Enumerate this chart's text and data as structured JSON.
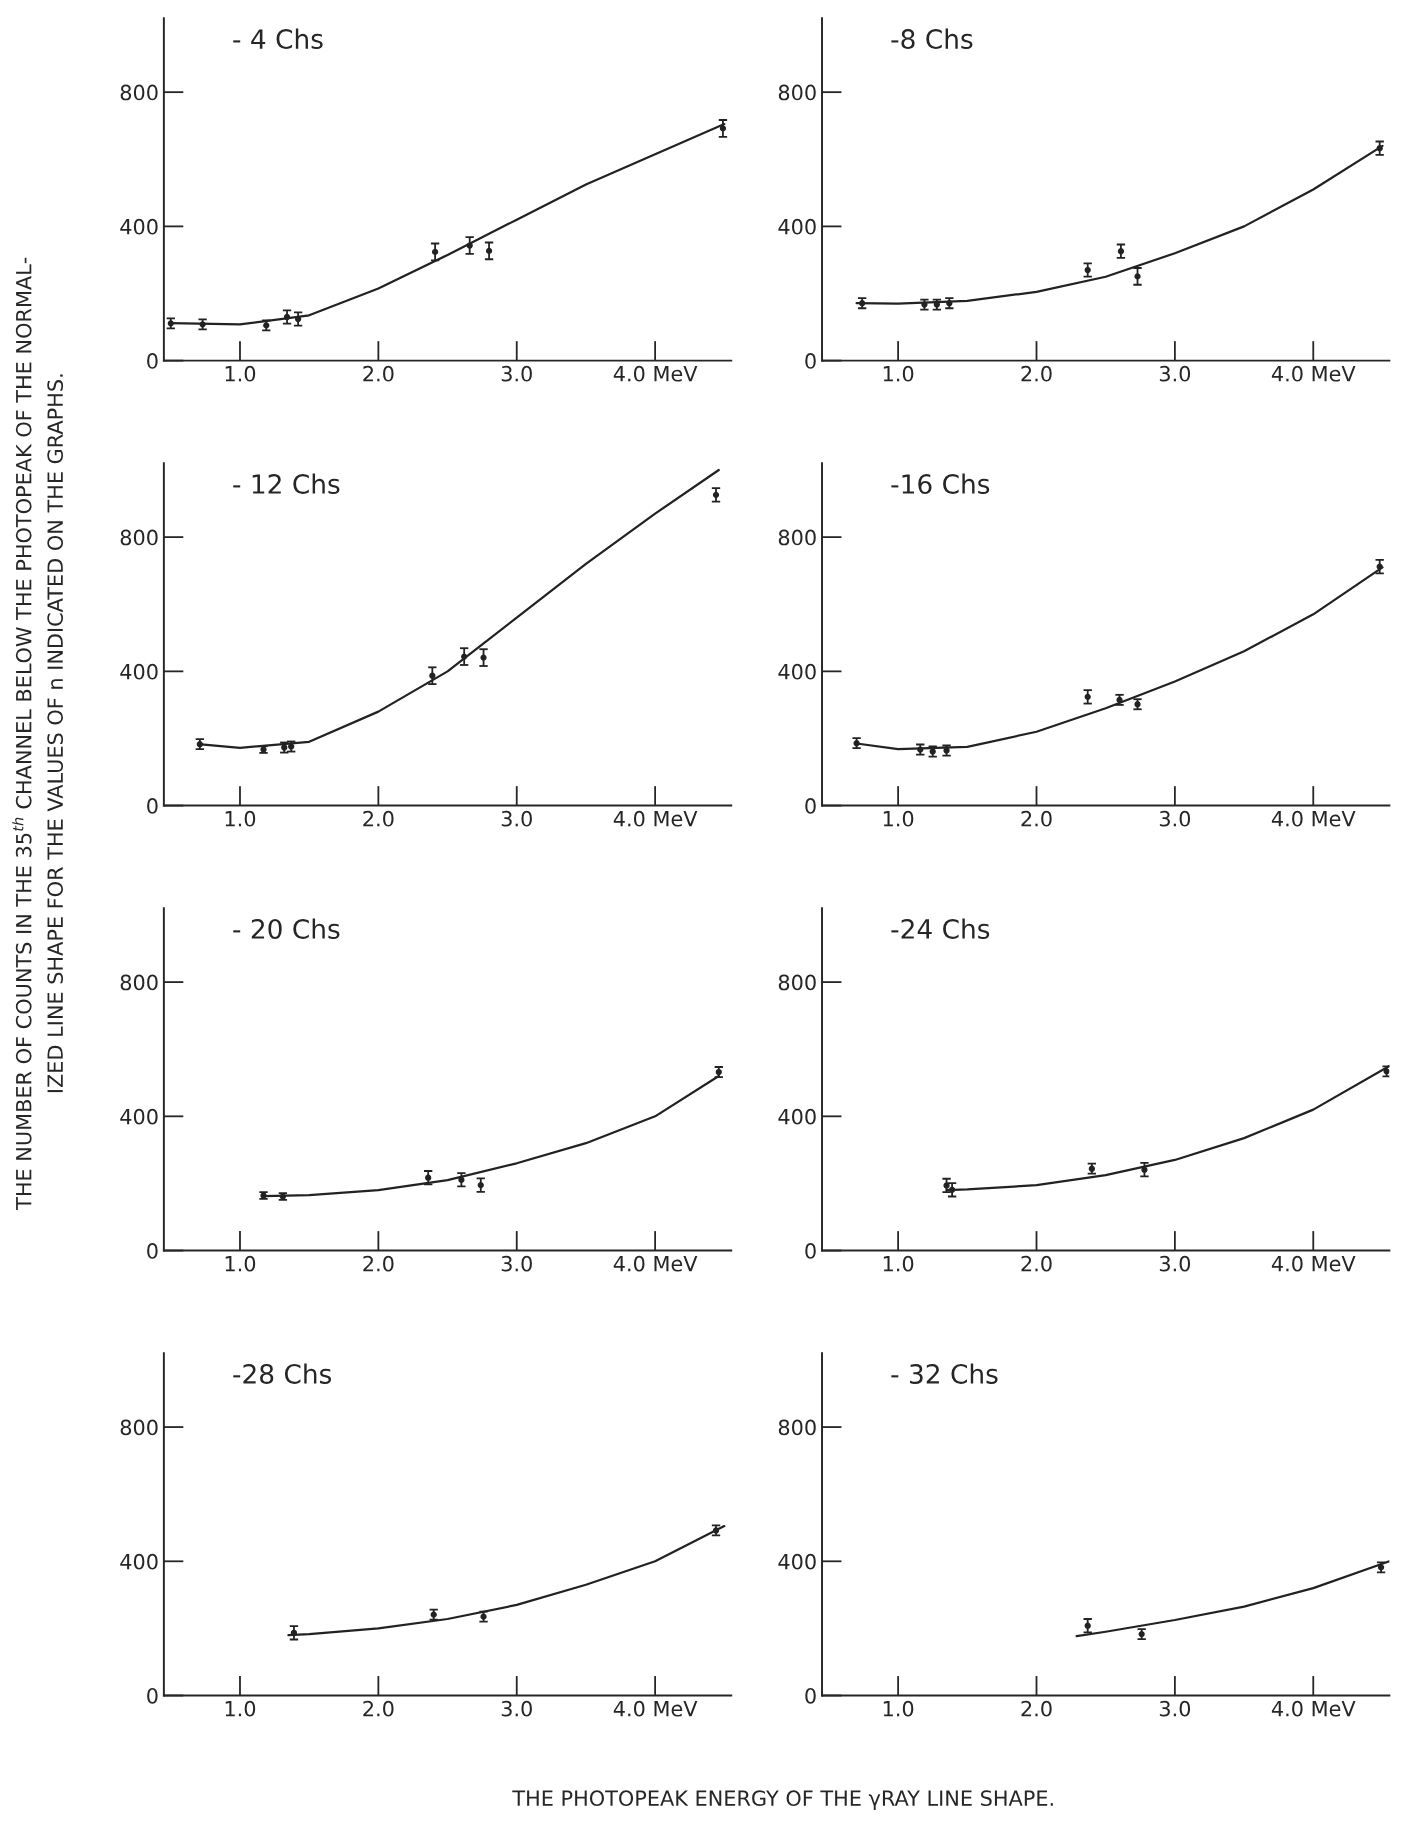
{
  "chart_data": [
    {
      "type": "scatter",
      "title": "- 4 Chs",
      "xlim": [
        0.45,
        4.55
      ],
      "ylim": [
        0,
        1020
      ],
      "xticks": [
        {
          "value": 1,
          "label": "1.0"
        },
        {
          "value": 2,
          "label": "2.0"
        },
        {
          "value": 3,
          "label": "3.0"
        },
        {
          "value": 4,
          "label": "4.0 MeV"
        }
      ],
      "yticks": [
        0,
        400,
        800
      ],
      "annotations": [
        "THE NUMBER OF COUNTS IN THE 35$^{th}$ CHANNEL BELOW THE PHOTOPEAK OF THE NORMAL-",
        "IZED LINE SHAPE FOR THE VALUES OF n INDICATED ON THE GRAPHS.",
        "THE PHOTOPEAK ENERGY OF THE γRAY LINE SHAPE."
      ],
      "series": [
        {
          "type": "scatter",
          "marker": "circle",
          "color": "#222222",
          "x": [
            0.5,
            0.73,
            1.19,
            1.34,
            1.42,
            2.41,
            2.66,
            2.8,
            4.49
          ],
          "values": [
            111,
            108,
            105,
            130,
            124,
            324,
            343,
            327,
            692
          ],
          "errors": [
            15,
            15,
            15,
            20,
            20,
            25,
            25,
            25,
            25
          ]
        },
        {
          "type": "line",
          "color": "#222222",
          "x": [
            0.5,
            1.0,
            1.5,
            2.0,
            2.5,
            3.0,
            3.5,
            4.0,
            4.5
          ],
          "values": [
            112,
            108,
            135,
            215,
            315,
            420,
            525,
            615,
            705
          ]
        }
      ]
    },
    {
      "type": "scatter",
      "title": "-8 Chs",
      "xlim": [
        0.45,
        4.55
      ],
      "ylim": [
        0,
        1020
      ],
      "xticks": [
        {
          "value": 1,
          "label": "1.0"
        },
        {
          "value": 2,
          "label": "2.0"
        },
        {
          "value": 3,
          "label": "3.0"
        },
        {
          "value": 4,
          "label": "4.0 MeV"
        }
      ],
      "yticks": [
        0,
        400,
        800
      ],
      "series": [
        {
          "type": "scatter",
          "marker": "circle",
          "color": "#222222",
          "x": [
            0.74,
            1.19,
            1.28,
            1.37,
            2.37,
            2.61,
            2.73,
            4.48
          ],
          "values": [
            171,
            167,
            167,
            171,
            270,
            326,
            251,
            633
          ],
          "errors": [
            15,
            15,
            15,
            15,
            20,
            20,
            25,
            20
          ]
        },
        {
          "type": "line",
          "color": "#222222",
          "x": [
            0.7,
            1.0,
            1.5,
            2.0,
            2.5,
            3.0,
            3.5,
            4.0,
            4.5
          ],
          "values": [
            171,
            170,
            178,
            205,
            250,
            320,
            400,
            510,
            640
          ]
        }
      ]
    },
    {
      "type": "scatter",
      "title": "- 12 Chs",
      "xlim": [
        0.45,
        4.55
      ],
      "ylim": [
        0,
        1020
      ],
      "xticks": [
        {
          "value": 1,
          "label": "1.0"
        },
        {
          "value": 2,
          "label": "2.0"
        },
        {
          "value": 3,
          "label": "3.0"
        },
        {
          "value": 4,
          "label": "4.0 MeV"
        }
      ],
      "yticks": [
        0,
        400,
        800
      ],
      "series": [
        {
          "type": "scatter",
          "marker": "circle",
          "color": "#222222",
          "x": [
            0.71,
            1.17,
            1.32,
            1.37,
            2.39,
            2.62,
            2.76,
            4.44
          ],
          "values": [
            183,
            167,
            173,
            176,
            387,
            444,
            441,
            926
          ],
          "errors": [
            15,
            10,
            15,
            15,
            25,
            25,
            25,
            20
          ]
        },
        {
          "type": "line",
          "color": "#222222",
          "x": [
            0.7,
            1.0,
            1.5,
            2.0,
            2.5,
            3.0,
            3.5,
            4.0,
            4.46
          ],
          "values": [
            183,
            172,
            190,
            280,
            400,
            560,
            720,
            870,
            1000
          ]
        }
      ]
    },
    {
      "type": "scatter",
      "title": "-16 Chs",
      "xlim": [
        0.45,
        4.55
      ],
      "ylim": [
        0,
        1020
      ],
      "xticks": [
        {
          "value": 1,
          "label": "1.0"
        },
        {
          "value": 2,
          "label": "2.0"
        },
        {
          "value": 3,
          "label": "3.0"
        },
        {
          "value": 4,
          "label": "4.0 MeV"
        }
      ],
      "yticks": [
        0,
        400,
        800
      ],
      "series": [
        {
          "type": "scatter",
          "marker": "circle",
          "color": "#222222",
          "x": [
            0.7,
            1.16,
            1.25,
            1.35,
            2.37,
            2.6,
            2.73,
            4.48
          ],
          "values": [
            186,
            167,
            161,
            164,
            324,
            315,
            302,
            712
          ],
          "errors": [
            15,
            15,
            15,
            15,
            20,
            15,
            15,
            20
          ]
        },
        {
          "type": "line",
          "color": "#222222",
          "x": [
            0.7,
            1.0,
            1.5,
            2.0,
            2.5,
            3.0,
            3.5,
            4.0,
            4.5
          ],
          "values": [
            185,
            168,
            175,
            220,
            290,
            370,
            460,
            570,
            710
          ]
        }
      ]
    },
    {
      "type": "scatter",
      "title": "- 20 Chs",
      "xlim": [
        0.45,
        4.55
      ],
      "ylim": [
        0,
        1020
      ],
      "xticks": [
        {
          "value": 1,
          "label": "1.0"
        },
        {
          "value": 2,
          "label": "2.0"
        },
        {
          "value": 3,
          "label": "3.0"
        },
        {
          "value": 4,
          "label": "4.0 MeV"
        }
      ],
      "yticks": [
        0,
        400,
        800
      ],
      "series": [
        {
          "type": "scatter",
          "marker": "circle",
          "color": "#222222",
          "x": [
            1.17,
            1.31,
            2.36,
            2.6,
            2.74,
            4.46
          ],
          "values": [
            164,
            161,
            217,
            211,
            195,
            532
          ],
          "errors": [
            10,
            10,
            20,
            20,
            20,
            15
          ]
        },
        {
          "type": "line",
          "color": "#222222",
          "x": [
            1.17,
            1.5,
            2.0,
            2.5,
            3.0,
            3.5,
            4.0,
            4.46
          ],
          "values": [
            162,
            165,
            180,
            210,
            260,
            320,
            400,
            520
          ]
        }
      ]
    },
    {
      "type": "scatter",
      "title": "-24 Chs",
      "xlim": [
        0.45,
        4.55
      ],
      "ylim": [
        0,
        1020
      ],
      "xticks": [
        {
          "value": 1,
          "label": "1.0"
        },
        {
          "value": 2,
          "label": "2.0"
        },
        {
          "value": 3,
          "label": "3.0"
        },
        {
          "value": 4,
          "label": "4.0 MeV"
        }
      ],
      "yticks": [
        0,
        400,
        800
      ],
      "series": [
        {
          "type": "scatter",
          "marker": "circle",
          "color": "#222222",
          "x": [
            1.35,
            1.39,
            2.4,
            2.78,
            4.53
          ],
          "values": [
            194,
            181,
            244,
            241,
            534
          ],
          "errors": [
            20,
            20,
            15,
            20,
            15
          ]
        },
        {
          "type": "line",
          "color": "#222222",
          "x": [
            1.35,
            1.5,
            2.0,
            2.5,
            3.0,
            3.5,
            4.0,
            4.55
          ],
          "values": [
            180,
            182,
            195,
            225,
            270,
            335,
            420,
            550
          ]
        }
      ]
    },
    {
      "type": "scatter",
      "title": "-28 Chs",
      "xlim": [
        0.45,
        4.55
      ],
      "ylim": [
        0,
        1020
      ],
      "xticks": [
        {
          "value": 1,
          "label": "1.0"
        },
        {
          "value": 2,
          "label": "2.0"
        },
        {
          "value": 3,
          "label": "3.0"
        },
        {
          "value": 4,
          "label": "4.0 MeV"
        }
      ],
      "yticks": [
        0,
        400,
        800
      ],
      "series": [
        {
          "type": "scatter",
          "marker": "circle",
          "color": "#222222",
          "x": [
            1.39,
            2.4,
            2.76,
            4.44
          ],
          "values": [
            187,
            241,
            235,
            492
          ],
          "errors": [
            20,
            15,
            15,
            15
          ]
        },
        {
          "type": "line",
          "color": "#222222",
          "x": [
            1.35,
            1.5,
            2.0,
            2.5,
            3.0,
            3.5,
            4.0,
            4.5
          ],
          "values": [
            180,
            183,
            200,
            228,
            270,
            330,
            400,
            505
          ]
        }
      ]
    },
    {
      "type": "scatter",
      "title": "- 32 Chs",
      "xlim": [
        0.45,
        4.55
      ],
      "ylim": [
        0,
        1020
      ],
      "xticks": [
        {
          "value": 1,
          "label": "1.0"
        },
        {
          "value": 2,
          "label": "2.0"
        },
        {
          "value": 3,
          "label": "3.0"
        },
        {
          "value": 4,
          "label": "4.0 MeV"
        }
      ],
      "yticks": [
        0,
        400,
        800
      ],
      "series": [
        {
          "type": "scatter",
          "marker": "circle",
          "color": "#222222",
          "x": [
            2.37,
            2.76,
            4.49
          ],
          "values": [
            208,
            183,
            382
          ],
          "errors": [
            20,
            15,
            15
          ]
        },
        {
          "type": "line",
          "color": "#222222",
          "x": [
            2.29,
            2.5,
            3.0,
            3.5,
            4.0,
            4.55
          ],
          "values": [
            177,
            190,
            225,
            265,
            320,
            400
          ]
        }
      ]
    }
  ]
}
